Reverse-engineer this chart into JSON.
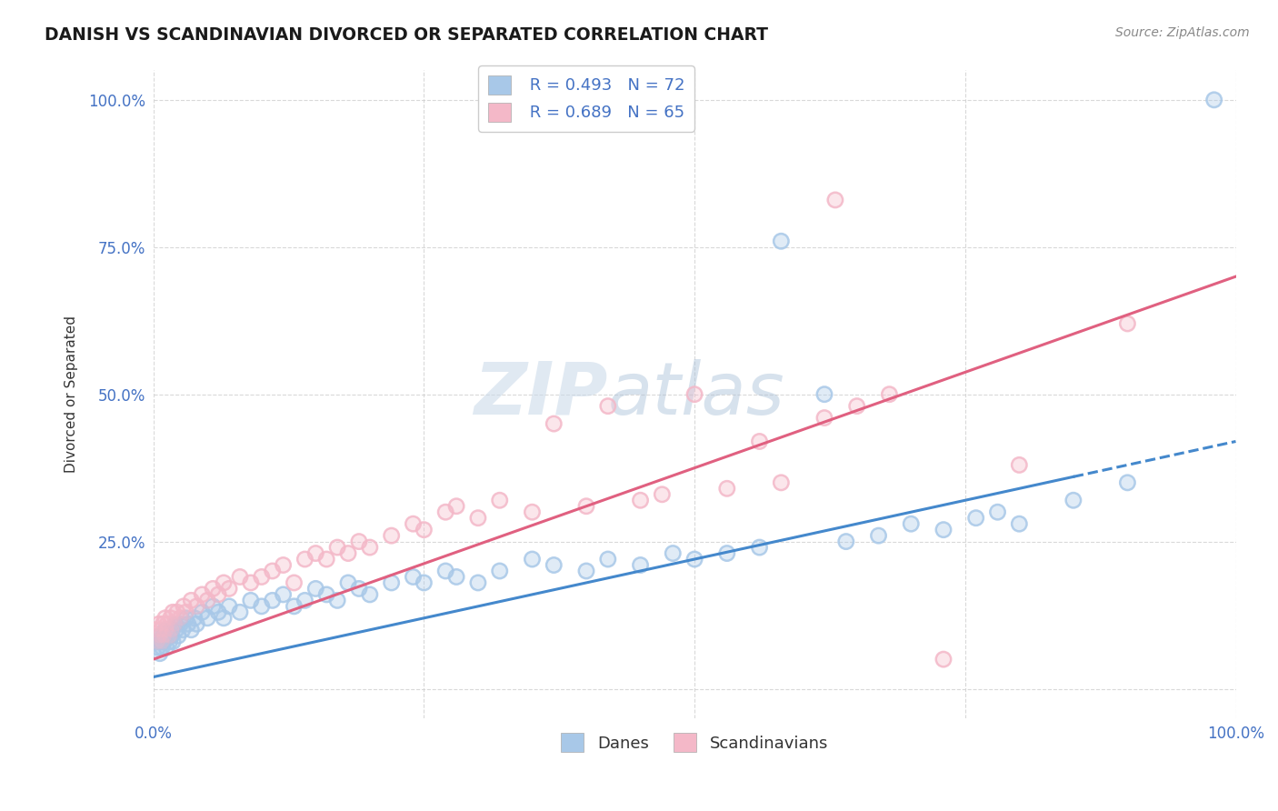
{
  "title": "DANISH VS SCANDINAVIAN DIVORCED OR SEPARATED CORRELATION CHART",
  "source": "Source: ZipAtlas.com",
  "ylabel": "Divorced or Separated",
  "xlim": [
    0,
    100
  ],
  "ylim": [
    -5,
    105
  ],
  "blue_scatter_color": "#a8c8e8",
  "pink_scatter_color": "#f4b8c8",
  "blue_line_color": "#4488cc",
  "pink_line_color": "#e06080",
  "danes_R": 0.493,
  "danes_N": 72,
  "scand_R": 0.689,
  "scand_N": 65,
  "legend_label_danes": "Danes",
  "legend_label_scand": "Scandinavians",
  "watermark_zip": "ZIP",
  "watermark_atlas": "atlas",
  "blue_line_intercept": 2.0,
  "blue_line_slope": 0.4,
  "pink_line_intercept": 5.0,
  "pink_line_slope": 0.65,
  "danes_x": [
    0.2,
    0.4,
    0.5,
    0.6,
    0.7,
    0.8,
    0.9,
    1.0,
    1.1,
    1.2,
    1.3,
    1.5,
    1.6,
    1.7,
    1.8,
    2.0,
    2.1,
    2.3,
    2.5,
    2.7,
    3.0,
    3.2,
    3.5,
    3.8,
    4.0,
    4.5,
    5.0,
    5.5,
    6.0,
    6.5,
    7.0,
    8.0,
    9.0,
    10.0,
    11.0,
    12.0,
    13.0,
    14.0,
    15.0,
    16.0,
    17.0,
    18.0,
    19.0,
    20.0,
    22.0,
    24.0,
    25.0,
    27.0,
    28.0,
    30.0,
    32.0,
    35.0,
    37.0,
    40.0,
    42.0,
    45.0,
    48.0,
    50.0,
    53.0,
    56.0,
    58.0,
    62.0,
    64.0,
    67.0,
    70.0,
    73.0,
    76.0,
    78.0,
    80.0,
    85.0,
    90.0,
    98.0
  ],
  "danes_y": [
    8.0,
    7.0,
    9.0,
    6.0,
    8.0,
    7.0,
    9.0,
    8.0,
    10.0,
    7.0,
    9.0,
    8.0,
    10.0,
    9.0,
    8.0,
    11.0,
    10.0,
    9.0,
    11.0,
    10.0,
    12.0,
    11.0,
    10.0,
    12.0,
    11.0,
    13.0,
    12.0,
    14.0,
    13.0,
    12.0,
    14.0,
    13.0,
    15.0,
    14.0,
    15.0,
    16.0,
    14.0,
    15.0,
    17.0,
    16.0,
    15.0,
    18.0,
    17.0,
    16.0,
    18.0,
    19.0,
    18.0,
    20.0,
    19.0,
    18.0,
    20.0,
    22.0,
    21.0,
    20.0,
    22.0,
    21.0,
    23.0,
    22.0,
    23.0,
    24.0,
    76.0,
    50.0,
    25.0,
    26.0,
    28.0,
    27.0,
    29.0,
    30.0,
    28.0,
    32.0,
    35.0,
    100.0
  ],
  "scand_x": [
    0.2,
    0.4,
    0.5,
    0.6,
    0.7,
    0.8,
    0.9,
    1.0,
    1.1,
    1.2,
    1.3,
    1.5,
    1.6,
    1.7,
    1.8,
    2.0,
    2.2,
    2.5,
    2.8,
    3.0,
    3.5,
    4.0,
    4.5,
    5.0,
    5.5,
    6.0,
    6.5,
    7.0,
    8.0,
    9.0,
    10.0,
    11.0,
    12.0,
    13.0,
    14.0,
    15.0,
    16.0,
    17.0,
    18.0,
    19.0,
    20.0,
    22.0,
    24.0,
    25.0,
    27.0,
    28.0,
    30.0,
    32.0,
    35.0,
    37.0,
    40.0,
    42.0,
    45.0,
    47.0,
    50.0,
    53.0,
    56.0,
    58.0,
    62.0,
    63.0,
    65.0,
    68.0,
    73.0,
    80.0,
    90.0
  ],
  "scand_y": [
    10.0,
    8.0,
    11.0,
    9.0,
    10.0,
    8.0,
    11.0,
    9.0,
    12.0,
    10.0,
    11.0,
    9.0,
    12.0,
    10.0,
    13.0,
    11.0,
    13.0,
    12.0,
    14.0,
    13.0,
    15.0,
    14.0,
    16.0,
    15.0,
    17.0,
    16.0,
    18.0,
    17.0,
    19.0,
    18.0,
    19.0,
    20.0,
    21.0,
    18.0,
    22.0,
    23.0,
    22.0,
    24.0,
    23.0,
    25.0,
    24.0,
    26.0,
    28.0,
    27.0,
    30.0,
    31.0,
    29.0,
    32.0,
    30.0,
    45.0,
    31.0,
    48.0,
    32.0,
    33.0,
    50.0,
    34.0,
    42.0,
    35.0,
    46.0,
    83.0,
    48.0,
    50.0,
    5.0,
    38.0,
    62.0
  ]
}
